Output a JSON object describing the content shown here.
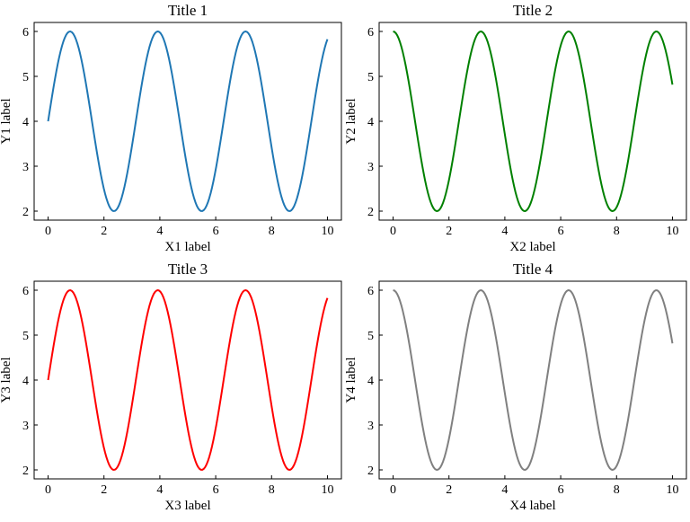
{
  "chart_data": [
    {
      "type": "line",
      "title": "Title 1",
      "xlabel": "X1 label",
      "ylabel": "Y1 label",
      "xlim": [
        -0.5,
        10.5
      ],
      "ylim": [
        1.8,
        6.2
      ],
      "xticks": [
        0,
        2,
        4,
        6,
        8,
        10
      ],
      "yticks": [
        2,
        3,
        4,
        5,
        6
      ],
      "grid": false,
      "function": "4 + 2*sin(2*x)",
      "x_range": [
        0,
        10
      ],
      "samples": 201,
      "series": [
        {
          "color": "#1f77b4",
          "x": [
            0,
            1,
            2,
            3,
            4,
            5,
            6,
            7,
            8,
            9,
            10
          ],
          "values": [
            4.0,
            5.82,
            2.49,
            3.44,
            5.98,
            2.91,
            2.93,
            5.98,
            3.42,
            2.5,
            5.83
          ]
        }
      ]
    },
    {
      "type": "line",
      "title": "Title 2",
      "xlabel": "X2 label",
      "ylabel": "Y2 label",
      "xlim": [
        -0.5,
        10.5
      ],
      "ylim": [
        1.8,
        6.2
      ],
      "xticks": [
        0,
        2,
        4,
        6,
        8,
        10
      ],
      "yticks": [
        2,
        3,
        4,
        5,
        6
      ],
      "grid": false,
      "function": "4 + 2*cos(2*x)",
      "x_range": [
        0,
        10
      ],
      "samples": 201,
      "series": [
        {
          "color": "#008000",
          "x": [
            0,
            1,
            2,
            3,
            4,
            5,
            6,
            7,
            8,
            9,
            10
          ],
          "values": [
            6.0,
            3.17,
            2.69,
            5.92,
            3.71,
            2.32,
            5.69,
            4.27,
            2.08,
            5.32,
            4.82
          ]
        }
      ]
    },
    {
      "type": "line",
      "title": "Title 3",
      "xlabel": "X3 label",
      "ylabel": "Y3 label",
      "xlim": [
        -0.5,
        10.5
      ],
      "ylim": [
        1.8,
        6.2
      ],
      "xticks": [
        0,
        2,
        4,
        6,
        8,
        10
      ],
      "yticks": [
        2,
        3,
        4,
        5,
        6
      ],
      "grid": false,
      "function": "4 + 2*sin(2*x)",
      "x_range": [
        0,
        10
      ],
      "samples": 201,
      "series": [
        {
          "color": "#ff0000",
          "x": [
            0,
            1,
            2,
            3,
            4,
            5,
            6,
            7,
            8,
            9,
            10
          ],
          "values": [
            4.0,
            5.82,
            2.49,
            3.44,
            5.98,
            2.91,
            2.93,
            5.98,
            3.42,
            2.5,
            5.83
          ]
        }
      ]
    },
    {
      "type": "line",
      "title": "Title 4",
      "xlabel": "X4 label",
      "ylabel": "Y4 label",
      "xlim": [
        -0.5,
        10.5
      ],
      "ylim": [
        1.8,
        6.2
      ],
      "xticks": [
        0,
        2,
        4,
        6,
        8,
        10
      ],
      "yticks": [
        2,
        3,
        4,
        5,
        6
      ],
      "grid": false,
      "function": "4 + 2*cos(2*x)",
      "x_range": [
        0,
        10
      ],
      "samples": 201,
      "series": [
        {
          "color": "#808080",
          "x": [
            0,
            1,
            2,
            3,
            4,
            5,
            6,
            7,
            8,
            9,
            10
          ],
          "values": [
            6.0,
            3.17,
            2.69,
            5.92,
            3.71,
            2.32,
            5.69,
            4.27,
            2.08,
            5.32,
            4.82
          ]
        }
      ]
    }
  ]
}
